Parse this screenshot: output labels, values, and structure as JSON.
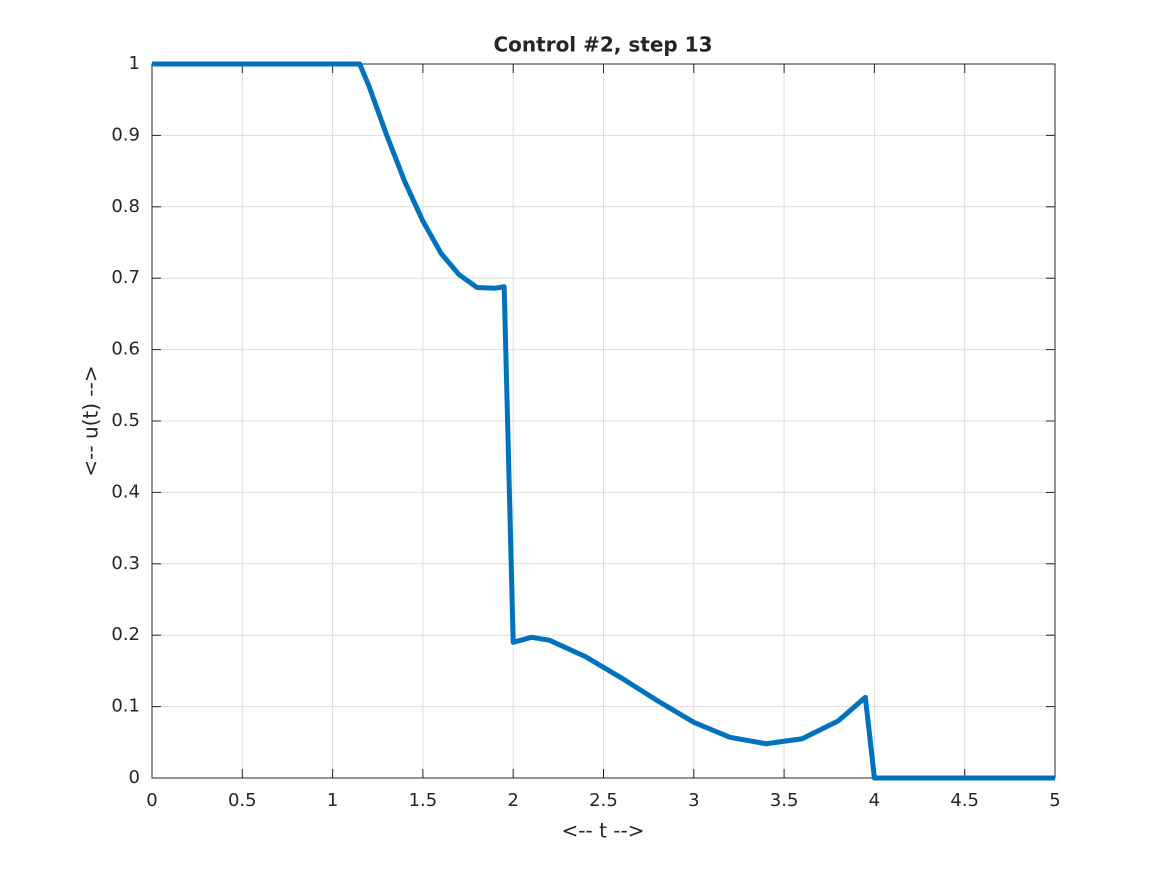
{
  "chart_data": {
    "type": "line",
    "title": "Control #2, step 13",
    "x_label": "<-- t -->",
    "y_label": "<-- u(t) -->",
    "series": [
      {
        "color": "#0072bd",
        "x": [
          0,
          1.15,
          1.2,
          1.3,
          1.4,
          1.5,
          1.6,
          1.7,
          1.8,
          1.9,
          1.95,
          2.0,
          2.1,
          2.2,
          2.4,
          2.6,
          2.8,
          3.0,
          3.2,
          3.4,
          3.6,
          3.8,
          3.95,
          4.0,
          5
        ],
        "values": [
          1,
          1,
          0.97,
          0.9,
          0.835,
          0.78,
          0.735,
          0.705,
          0.687,
          0.686,
          0.688,
          0.19,
          0.197,
          0.193,
          0.17,
          0.14,
          0.108,
          0.078,
          0.057,
          0.048,
          0.055,
          0.08,
          0.113,
          0,
          0
        ]
      }
    ],
    "xlim": [
      0,
      5
    ],
    "xticks": [
      0,
      0.5,
      1,
      1.5,
      2,
      2.5,
      3,
      3.5,
      4,
      4.5,
      5
    ],
    "ylim": [
      0,
      1
    ],
    "yticks": [
      0,
      0.1,
      0.2,
      0.3,
      0.4,
      0.5,
      0.6,
      0.7,
      0.8,
      0.9,
      1
    ],
    "grid": true
  }
}
